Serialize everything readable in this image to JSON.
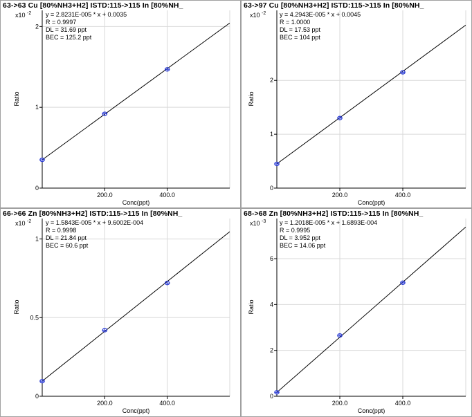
{
  "chart_data": [
    {
      "type": "scatter",
      "title": "63->63 Cu [80%NH3+H2] ISTD:115->115 In [80%NH_",
      "multiplier_base": "x10",
      "multiplier_exp": "-2",
      "stats": [
        "y = 2.8231E-005 * x  + 0.0035",
        "R = 0.9997",
        "DL = 31.69 ppt",
        "BEC = 125.2 ppt"
      ],
      "xlabel": "Conc(ppt)",
      "ylabel": "Ratio",
      "xlim": [
        0,
        600
      ],
      "ylim": [
        0,
        2.2
      ],
      "x_ticks": [
        200,
        400
      ],
      "x_tick_labels": [
        "200.0",
        "400.0"
      ],
      "y_ticks": [
        0,
        1,
        2
      ],
      "y_tick_labels": [
        "0",
        "1",
        "2"
      ],
      "fit": {
        "slope": 0.0028231,
        "intercept": 0.35
      },
      "points": [
        {
          "x": 0,
          "y": 0.35
        },
        {
          "x": 200,
          "y": 0.92
        },
        {
          "x": 400,
          "y": 1.47
        }
      ],
      "point_color": "#2a3bd4"
    },
    {
      "type": "scatter",
      "title": "63->97 Cu [80%NH3+H2] ISTD:115->115 In [80%NH_",
      "multiplier_base": "x10",
      "multiplier_exp": "-2",
      "stats": [
        "y = 4.2943E-005 * x  + 0.0045",
        "R = 1.0000",
        "DL = 17.53 ppt",
        "BEC = 104 ppt"
      ],
      "xlabel": "Conc(ppt)",
      "ylabel": "Ratio",
      "xlim": [
        0,
        600
      ],
      "ylim": [
        0,
        3.3
      ],
      "x_ticks": [
        200,
        400
      ],
      "x_tick_labels": [
        "200.0",
        "400.0"
      ],
      "y_ticks": [
        0,
        1,
        2
      ],
      "y_tick_labels": [
        "0",
        "1",
        "2"
      ],
      "fit": {
        "slope": 0.0042943,
        "intercept": 0.45
      },
      "points": [
        {
          "x": 0,
          "y": 0.45
        },
        {
          "x": 200,
          "y": 1.3
        },
        {
          "x": 400,
          "y": 2.15
        }
      ],
      "point_color": "#2a3bd4"
    },
    {
      "type": "scatter",
      "title": "66->66 Zn [80%NH3+H2] ISTD:115->115 In [80%NH_",
      "multiplier_base": "x10",
      "multiplier_exp": "-2",
      "stats": [
        "y = 1.5843E-005 * x  + 9.6002E-004",
        "R = 0.9998",
        "DL = 21.84 ppt",
        "BEC = 60.6 ppt"
      ],
      "xlabel": "Conc(ppt)",
      "ylabel": "Ratio",
      "xlim": [
        0,
        600
      ],
      "ylim": [
        0,
        1.13
      ],
      "x_ticks": [
        200,
        400
      ],
      "x_tick_labels": [
        "200.0",
        "400.0"
      ],
      "y_ticks": [
        0,
        0.5,
        1
      ],
      "y_tick_labels": [
        "0",
        "0.5",
        "1"
      ],
      "fit": {
        "slope": 0.0015843,
        "intercept": 0.096
      },
      "points": [
        {
          "x": 0,
          "y": 0.096
        },
        {
          "x": 200,
          "y": 0.42
        },
        {
          "x": 400,
          "y": 0.72
        }
      ],
      "point_color": "#2a3bd4"
    },
    {
      "type": "scatter",
      "title": "68->68 Zn [80%NH3+H2] ISTD:115->115 In [80%NH_",
      "multiplier_base": "x10",
      "multiplier_exp": "-3",
      "stats": [
        "y = 1.2018E-005 * x  + 1.6893E-004",
        "R = 0.9995",
        "DL = 3.952 ppt",
        "BEC = 14.06 ppt"
      ],
      "xlabel": "Conc(ppt)",
      "ylabel": "Ratio",
      "xlim": [
        0,
        600
      ],
      "ylim": [
        0,
        7.75
      ],
      "x_ticks": [
        200,
        400
      ],
      "x_tick_labels": [
        "200.0",
        "400.0"
      ],
      "y_ticks": [
        0,
        2,
        4,
        6
      ],
      "y_tick_labels": [
        "0",
        "2",
        "4",
        "6"
      ],
      "fit": {
        "slope": 0.012018,
        "intercept": 0.17
      },
      "points": [
        {
          "x": 0,
          "y": 0.17
        },
        {
          "x": 200,
          "y": 2.65
        },
        {
          "x": 400,
          "y": 4.95
        }
      ],
      "point_color": "#2a3bd4"
    }
  ]
}
